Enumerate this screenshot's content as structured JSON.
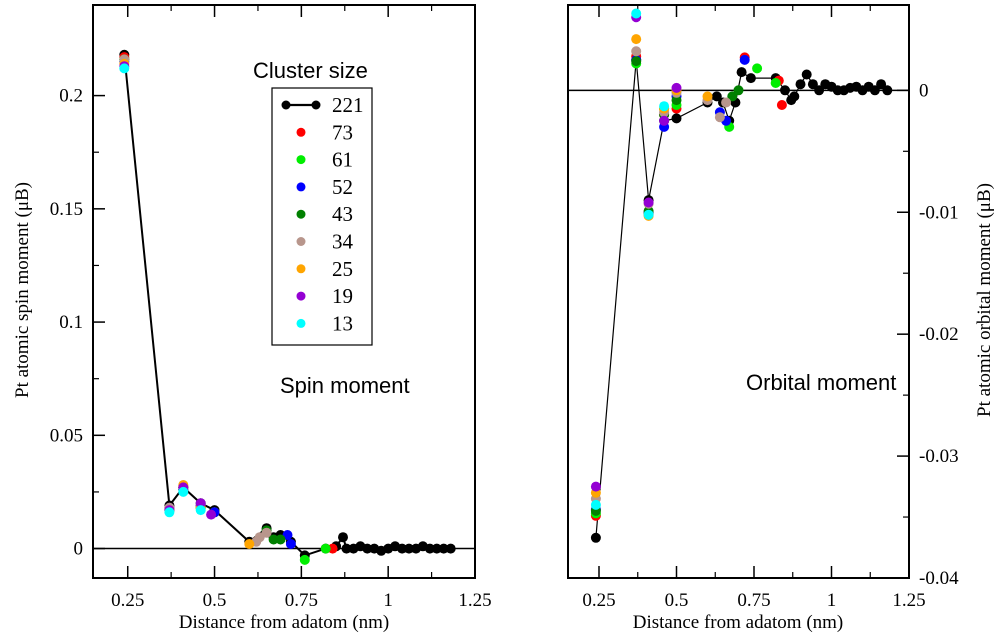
{
  "chart_data": [
    {
      "type": "scatter",
      "panel": "left",
      "annotation": "Spin moment",
      "xlabel": "Distance from adatom (nm)",
      "ylabel": "Pt atomic spin moment (μB)",
      "xlim": [
        0.15,
        1.25
      ],
      "ylim": [
        -0.013,
        0.24
      ],
      "xticks": [
        0.25,
        0.5,
        0.75,
        1,
        1.25
      ],
      "xtick_labels": [
        "0.25",
        "0.5",
        "0.75",
        "1",
        "1.25"
      ],
      "yticks": [
        0,
        0.05,
        0.1,
        0.15,
        0.2
      ],
      "ytick_labels": [
        "0",
        "0.05",
        "0.1",
        "0.15",
        "0.2"
      ],
      "zero_line": true,
      "legend_title": "Cluster size",
      "legend_placement": "top-right",
      "series": [
        {
          "name": "221",
          "color": "#000000",
          "line": true,
          "x": [
            0.24,
            0.37,
            0.41,
            0.46,
            0.5,
            0.6,
            0.65,
            0.67,
            0.69,
            0.72,
            0.76,
            0.82,
            0.85,
            0.87,
            0.88,
            0.9,
            0.92,
            0.94,
            0.96,
            0.98,
            1.0,
            1.02,
            1.04,
            1.06,
            1.08,
            1.1,
            1.12,
            1.14,
            1.16,
            1.18
          ],
          "y": [
            0.218,
            0.019,
            0.027,
            0.02,
            0.017,
            0.003,
            0.009,
            0.005,
            0.006,
            0.003,
            -0.003,
            0.0,
            0.001,
            0.005,
            0.0,
            0.0,
            0.001,
            0.0,
            0.0,
            -0.001,
            0.0,
            0.001,
            0.0,
            0.0,
            0.0,
            0.001,
            0.0,
            0.0,
            0.0,
            0.0
          ]
        },
        {
          "name": "73",
          "color": "#ff0000",
          "line": false,
          "x": [
            0.24,
            0.37,
            0.41,
            0.46,
            0.5,
            0.84
          ],
          "y": [
            0.217,
            0.018,
            0.027,
            0.019,
            0.016,
            0.0
          ]
        },
        {
          "name": "61",
          "color": "#00ee00",
          "line": false,
          "x": [
            0.24,
            0.37,
            0.41,
            0.46,
            0.5,
            0.76,
            0.82
          ],
          "y": [
            0.216,
            0.017,
            0.026,
            0.018,
            0.016,
            -0.005,
            0.0
          ]
        },
        {
          "name": "52",
          "color": "#0000ff",
          "line": false,
          "x": [
            0.24,
            0.37,
            0.41,
            0.46,
            0.5,
            0.71,
            0.72
          ],
          "y": [
            0.215,
            0.018,
            0.026,
            0.019,
            0.016,
            0.006,
            0.002
          ]
        },
        {
          "name": "43",
          "color": "#008000",
          "line": false,
          "x": [
            0.24,
            0.37,
            0.41,
            0.46,
            0.65,
            0.67,
            0.69
          ],
          "y": [
            0.216,
            0.017,
            0.027,
            0.018,
            0.008,
            0.004,
            0.004
          ]
        },
        {
          "name": "34",
          "color": "#b8968c",
          "line": false,
          "x": [
            0.24,
            0.37,
            0.41,
            0.46,
            0.62,
            0.63,
            0.65
          ],
          "y": [
            0.216,
            0.018,
            0.028,
            0.018,
            0.003,
            0.005,
            0.007
          ]
        },
        {
          "name": "25",
          "color": "#ffa500",
          "line": false,
          "x": [
            0.24,
            0.37,
            0.41,
            0.46,
            0.6
          ],
          "y": [
            0.214,
            0.017,
            0.028,
            0.018,
            0.002
          ]
        },
        {
          "name": "19",
          "color": "#9400d3",
          "line": false,
          "x": [
            0.24,
            0.37,
            0.41,
            0.46,
            0.49
          ],
          "y": [
            0.213,
            0.017,
            0.027,
            0.02,
            0.015
          ]
        },
        {
          "name": "13",
          "color": "#00ffff",
          "line": false,
          "x": [
            0.24,
            0.37,
            0.41,
            0.46
          ],
          "y": [
            0.212,
            0.016,
            0.025,
            0.017
          ]
        }
      ]
    },
    {
      "type": "scatter",
      "panel": "right",
      "annotation": "Orbital moment",
      "xlabel": "Distance from adatom (nm)",
      "ylabel": "Pt atomic orbital moment (μB)",
      "xlim": [
        0.15,
        1.25
      ],
      "ylim": [
        -0.04,
        0.007
      ],
      "xticks": [
        0.25,
        0.5,
        0.75,
        1,
        1.25
      ],
      "xtick_labels": [
        "0.25",
        "0.5",
        "0.75",
        "1",
        "1.25"
      ],
      "yticks": [
        0,
        -0.01,
        -0.02,
        -0.03,
        -0.04
      ],
      "ytick_labels": [
        "0",
        "-0.01",
        "-0.02",
        "-0.03",
        "-0.04"
      ],
      "zero_line": true,
      "series": [
        {
          "name": "221",
          "color": "#000000",
          "line": true,
          "x": [
            0.24,
            0.37,
            0.41,
            0.46,
            0.5,
            0.6,
            0.63,
            0.65,
            0.67,
            0.69,
            0.71,
            0.74,
            0.82,
            0.85,
            0.87,
            0.88,
            0.9,
            0.92,
            0.94,
            0.96,
            0.98,
            1.0,
            1.02,
            1.04,
            1.06,
            1.08,
            1.1,
            1.12,
            1.14,
            1.16,
            1.18
          ],
          "y": [
            -0.0367,
            0.0025,
            -0.009,
            -0.0025,
            -0.0023,
            -0.001,
            -0.0005,
            -0.001,
            -0.0025,
            -0.001,
            0.0015,
            0.001,
            0.001,
            0.0,
            -0.0008,
            -0.0005,
            0.0005,
            0.0013,
            0.0005,
            0.0,
            0.0005,
            0.0003,
            0.0,
            0.0,
            0.0002,
            0.0003,
            0.0,
            0.0003,
            0.0,
            0.0005,
            0.0
          ]
        },
        {
          "name": "73",
          "color": "#ff0000",
          "line": false,
          "x": [
            0.24,
            0.37,
            0.41,
            0.46,
            0.5,
            0.72,
            0.83,
            0.84
          ],
          "y": [
            -0.0349,
            0.0028,
            -0.0102,
            -0.002,
            -0.0015,
            0.0027,
            0.0008,
            -0.0012
          ]
        },
        {
          "name": "61",
          "color": "#00ee00",
          "line": false,
          "x": [
            0.24,
            0.37,
            0.41,
            0.46,
            0.5,
            0.67,
            0.76,
            0.82
          ],
          "y": [
            -0.0347,
            0.0022,
            -0.0101,
            -0.0015,
            -0.0012,
            -0.003,
            0.0018,
            0.0006
          ]
        },
        {
          "name": "52",
          "color": "#0000ff",
          "line": false,
          "x": [
            0.24,
            0.37,
            0.41,
            0.46,
            0.5,
            0.64,
            0.66,
            0.72
          ],
          "y": [
            -0.0344,
            0.0025,
            -0.01,
            -0.003,
            -0.0005,
            -0.0018,
            -0.0025,
            0.0025
          ]
        },
        {
          "name": "43",
          "color": "#008000",
          "line": false,
          "x": [
            0.24,
            0.37,
            0.41,
            0.46,
            0.5,
            0.68,
            0.7
          ],
          "y": [
            -0.0345,
            0.0024,
            -0.0099,
            -0.002,
            -0.0008,
            -0.0005,
            0.0
          ]
        },
        {
          "name": "34",
          "color": "#b8968c",
          "line": false,
          "x": [
            0.24,
            0.37,
            0.41,
            0.46,
            0.5,
            0.6,
            0.64,
            0.66
          ],
          "y": [
            -0.0335,
            0.0032,
            -0.0093,
            -0.0018,
            -0.0002,
            -0.0008,
            -0.0022,
            -0.001
          ]
        },
        {
          "name": "25",
          "color": "#ffa500",
          "line": false,
          "x": [
            0.24,
            0.37,
            0.41,
            0.46,
            0.5,
            0.6
          ],
          "y": [
            -0.033,
            0.0042,
            -0.0103,
            -0.0015,
            0.0,
            -0.0005
          ]
        },
        {
          "name": "19",
          "color": "#9400d3",
          "line": false,
          "x": [
            0.24,
            0.37,
            0.41,
            0.46,
            0.5
          ],
          "y": [
            -0.0325,
            0.006,
            -0.0092,
            -0.0025,
            0.0002
          ]
        },
        {
          "name": "13",
          "color": "#00ffff",
          "line": false,
          "x": [
            0.24,
            0.37,
            0.41,
            0.46
          ],
          "y": [
            -0.034,
            0.0063,
            -0.0102,
            -0.0013
          ]
        }
      ]
    }
  ]
}
